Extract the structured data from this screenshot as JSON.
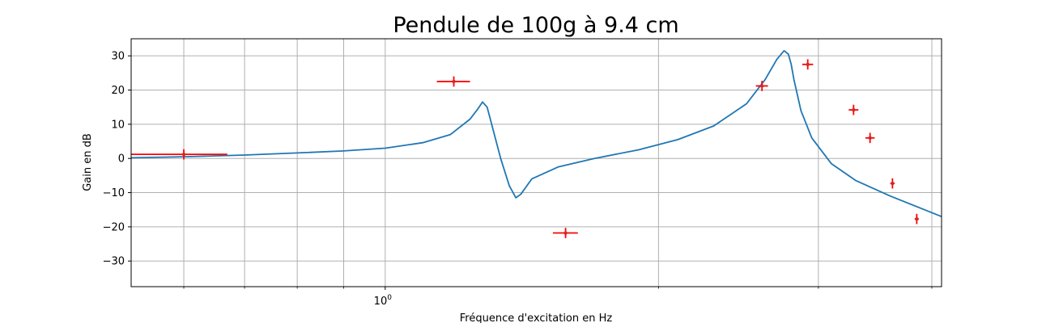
{
  "chart_data": {
    "type": "line",
    "title": "Pendule de 100g à 9.4 cm",
    "xlabel": "Fréquence d'excitation en Hz",
    "ylabel": "Gain en dB",
    "xscale": "log",
    "xlim": [
      0.525,
      4.1
    ],
    "ylim": [
      -37.5,
      35
    ],
    "grid": true,
    "x_major_ticks": [
      {
        "value": 1,
        "label": "10^0"
      }
    ],
    "x_minor_ticks": [
      0.6,
      0.7,
      0.8,
      0.9,
      2,
      3,
      4
    ],
    "y_ticks": [
      -30,
      -20,
      -10,
      0,
      10,
      20,
      30
    ],
    "y_tick_labels": [
      "−30",
      "−20",
      "−10",
      "0",
      "10",
      "20",
      "30"
    ],
    "series": [
      {
        "kind": "line",
        "color": "#1f77b4",
        "x": [
          0.525,
          0.6,
          0.7,
          0.8,
          0.9,
          1.0,
          1.1,
          1.18,
          1.24,
          1.265,
          1.28,
          1.295,
          1.31,
          1.34,
          1.37,
          1.393,
          1.41,
          1.45,
          1.55,
          1.7,
          1.9,
          2.1,
          2.3,
          2.5,
          2.62,
          2.7,
          2.75,
          2.78,
          2.8,
          2.82,
          2.87,
          2.95,
          3.1,
          3.3,
          3.6,
          4.1
        ],
        "y": [
          0.2,
          0.5,
          1.0,
          1.6,
          2.2,
          3.0,
          4.6,
          7.0,
          11.5,
          14.5,
          16.5,
          15.0,
          10.0,
          0.0,
          -8.0,
          -11.5,
          -10.5,
          -6.0,
          -2.5,
          0.0,
          2.5,
          5.5,
          9.5,
          16.0,
          23.0,
          29.0,
          31.5,
          30.5,
          27.5,
          23.0,
          14.0,
          6.0,
          -1.5,
          -6.5,
          -11.0,
          -17.0
        ]
      },
      {
        "kind": "errorbar",
        "color": "#ff0000",
        "marker_color": "#d62728",
        "points": [
          {
            "x": 0.6,
            "y": 1.2,
            "x_lo": 0.525,
            "x_hi": 0.67,
            "y_err": 1.5
          },
          {
            "x": 1.19,
            "y": 22.5,
            "x_lo": 1.14,
            "x_hi": 1.24,
            "y_err": 1.5
          },
          {
            "x": 1.58,
            "y": -21.8,
            "x_lo": 1.53,
            "x_hi": 1.63,
            "y_err": 1.5
          },
          {
            "x": 2.6,
            "y": 21.2,
            "x_lo": 2.56,
            "x_hi": 2.64,
            "y_err": 1.5
          },
          {
            "x": 2.92,
            "y": 27.5,
            "x_lo": 2.88,
            "x_hi": 2.96,
            "y_err": 1.5
          },
          {
            "x": 3.28,
            "y": 14.2,
            "x_lo": 3.24,
            "x_hi": 3.32,
            "y_err": 1.5
          },
          {
            "x": 3.42,
            "y": 6.0,
            "x_lo": 3.38,
            "x_hi": 3.46,
            "y_err": 1.5
          },
          {
            "x": 3.62,
            "y": -7.3,
            "x_lo": 3.6,
            "x_hi": 3.64,
            "y_err": 1.5
          },
          {
            "x": 3.85,
            "y": -17.7,
            "x_lo": 3.83,
            "x_hi": 3.87,
            "y_err": 1.5
          }
        ]
      }
    ]
  }
}
